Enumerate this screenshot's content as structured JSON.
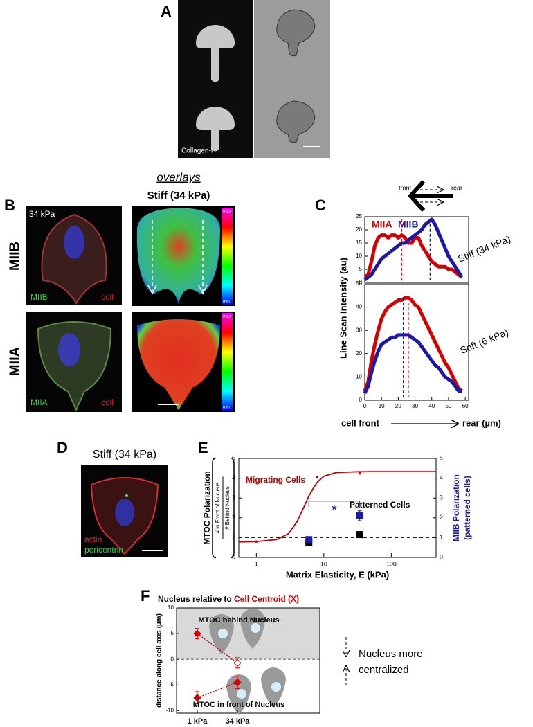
{
  "panel_a": {
    "label": "A",
    "image_label": "Collagen-I"
  },
  "panel_b": {
    "label": "B",
    "heading": "overlays",
    "subheading": "Stiff (34 kPa)",
    "stiffness": "34 kPa",
    "rows": [
      {
        "name": "MIIB",
        "stain_green": "MIIB",
        "stain_red": "coll"
      },
      {
        "name": "MIIA",
        "stain_green": "MIIA",
        "stain_red": "coll"
      }
    ],
    "colorbar_max": "max",
    "colorbar_min": "min"
  },
  "panel_c": {
    "label": "C",
    "front": "front",
    "rear": "rear",
    "x_start": "cell front",
    "x_end": "rear (µm)"
  },
  "panel_d": {
    "label": "D",
    "title": "Stiff (34 kPa)",
    "stain_red": "actin",
    "stain_green": "pericentrin"
  },
  "panel_e": {
    "label": "E"
  },
  "panel_f": {
    "label": "F",
    "side_note": [
      "Nucleus more",
      "centralized"
    ]
  },
  "chart_data": [
    {
      "type": "line",
      "title": "Stiff (34 kPa)",
      "y_label": "Line Scan Intensity (au)",
      "x": [
        0,
        2,
        4,
        6,
        8,
        10,
        12,
        14,
        16,
        18,
        20,
        22,
        24,
        26,
        28,
        30,
        32,
        34,
        36,
        38,
        40,
        42,
        44,
        46,
        48,
        50,
        52,
        54,
        56,
        58
      ],
      "series": [
        {
          "name": "MIIA",
          "color": "#d40000",
          "values": [
            2,
            3,
            8,
            14,
            17,
            18,
            18,
            17,
            18,
            18,
            17,
            18,
            17,
            15,
            15,
            17,
            17,
            14,
            12,
            10,
            8,
            7,
            6,
            6,
            6,
            5,
            5,
            4,
            3,
            2
          ]
        },
        {
          "name": "MIIB",
          "color": "#1a1aa6",
          "values": [
            1,
            2,
            3,
            5,
            7,
            9,
            10,
            11,
            12,
            13,
            14,
            15,
            15,
            16,
            17,
            18,
            19,
            20,
            22,
            23,
            24,
            22,
            19,
            16,
            13,
            10,
            8,
            6,
            4,
            2
          ]
        }
      ],
      "peak_lines": [
        {
          "x": 22,
          "color": "#d40000"
        },
        {
          "x": 39,
          "color": "#1a1aa6"
        }
      ],
      "xlim": [
        0,
        62
      ],
      "ylim": [
        0,
        25
      ],
      "yticks": [
        0,
        5,
        10,
        15,
        20,
        25
      ]
    },
    {
      "type": "line",
      "title": "Soft (6 kPa)",
      "x": [
        0,
        2,
        4,
        6,
        8,
        10,
        12,
        14,
        16,
        18,
        20,
        22,
        24,
        26,
        28,
        30,
        32,
        34,
        36,
        38,
        40,
        42,
        44,
        46,
        48,
        50,
        52,
        54,
        56,
        58
      ],
      "series": [
        {
          "color": "#d40000",
          "values": [
            4,
            8,
            17,
            24,
            30,
            35,
            38,
            40,
            41,
            42,
            43,
            43,
            44,
            44,
            43,
            41,
            40,
            37,
            34,
            31,
            28,
            25,
            22,
            19,
            16,
            14,
            11,
            8,
            5,
            4
          ]
        },
        {
          "color": "#1a1aa6",
          "values": [
            3,
            6,
            12,
            17,
            21,
            24,
            25,
            26,
            27,
            27,
            28,
            28,
            28,
            28,
            27,
            26,
            25,
            23,
            21,
            19,
            17,
            15,
            14,
            12,
            10,
            9,
            8,
            6,
            4,
            4
          ]
        }
      ],
      "peak_lines": [
        {
          "x": 23,
          "color": "#1a1aa6"
        },
        {
          "x": 26,
          "color": "#d40000"
        }
      ],
      "xlim": [
        0,
        62
      ],
      "xticks": [
        0,
        10,
        20,
        30,
        40,
        50,
        60
      ],
      "ylim": [
        0,
        50
      ],
      "yticks": [
        0,
        10,
        20,
        30,
        40,
        50
      ]
    },
    {
      "type": "semilog",
      "x_label": "Matrix Elasticity, E (kPa)",
      "y_label": "MTOC Polarization",
      "y_label_fraction": [
        "# in Front of Nucleus",
        "# Behind Nucleus"
      ],
      "y2_label": [
        "MIIB Polarization",
        "(patterned cells)"
      ],
      "y2_color": "#1a1aa6",
      "log_x": true,
      "xlim": [
        0.55,
        460
      ],
      "xticks": [
        1,
        10,
        100
      ],
      "ylim": [
        0,
        5
      ],
      "yticks": [
        0,
        1,
        2,
        3,
        4,
        5
      ],
      "y2lim": [
        0,
        5
      ],
      "y2ticks": [
        0,
        1,
        2,
        3,
        4,
        5
      ],
      "reference_line": 1,
      "series": [
        {
          "name": "Migrating Cells",
          "style": "curve",
          "color": "#c00000",
          "x": [
            0.55,
            1,
            2,
            3,
            4,
            5,
            6,
            7,
            8,
            10,
            15,
            20,
            30,
            50,
            100,
            200,
            460
          ],
          "values": [
            0.78,
            0.8,
            0.9,
            1.2,
            1.8,
            2.5,
            3.1,
            3.5,
            3.8,
            4.1,
            4.28,
            4.3,
            4.32,
            4.33,
            4.33,
            4.33,
            4.33
          ]
        },
        {
          "style": "points",
          "color": "#c00000",
          "x": [
            1,
            8,
            34
          ],
          "values": [
            0.8,
            4.05,
            4.25
          ]
        },
        {
          "name": "Patterned Cells",
          "style": "squares",
          "color": "#000000",
          "x": [
            6,
            34
          ],
          "values": [
            0.75,
            1.15
          ],
          "errors": [
            0.12,
            0.15
          ]
        },
        {
          "style": "squares",
          "color": "#1a1aa6",
          "axis": "y2",
          "x": [
            6,
            34
          ],
          "values": [
            0.9,
            2.1
          ],
          "errors": [
            0.12,
            0.25
          ]
        }
      ],
      "significance": {
        "label": "*",
        "color": "#1a1aa6"
      }
    },
    {
      "type": "category-points",
      "title": [
        "Nucleus relative to ",
        "Cell Centroid (X)"
      ],
      "title_colors": [
        "#000000",
        "#d40000"
      ],
      "y_label": "distance along cell axis (µm)",
      "categories": [
        "1 kPa",
        "34 kPa"
      ],
      "ylim": [
        -10.5,
        10
      ],
      "yticks": [
        -10,
        -5,
        0,
        5,
        10
      ],
      "region_labels": [
        "MTOC behind Nucleus",
        "MTOC in front of Nucleus"
      ],
      "series": [
        {
          "color": "#d40000",
          "open": [
            false,
            true
          ],
          "values": [
            5,
            -0.7
          ],
          "errors": [
            1,
            1
          ]
        },
        {
          "color": "#d40000",
          "open": [
            false,
            false
          ],
          "values": [
            -7.5,
            -4.5
          ],
          "errors": [
            1.2,
            1.2
          ]
        }
      ]
    }
  ]
}
